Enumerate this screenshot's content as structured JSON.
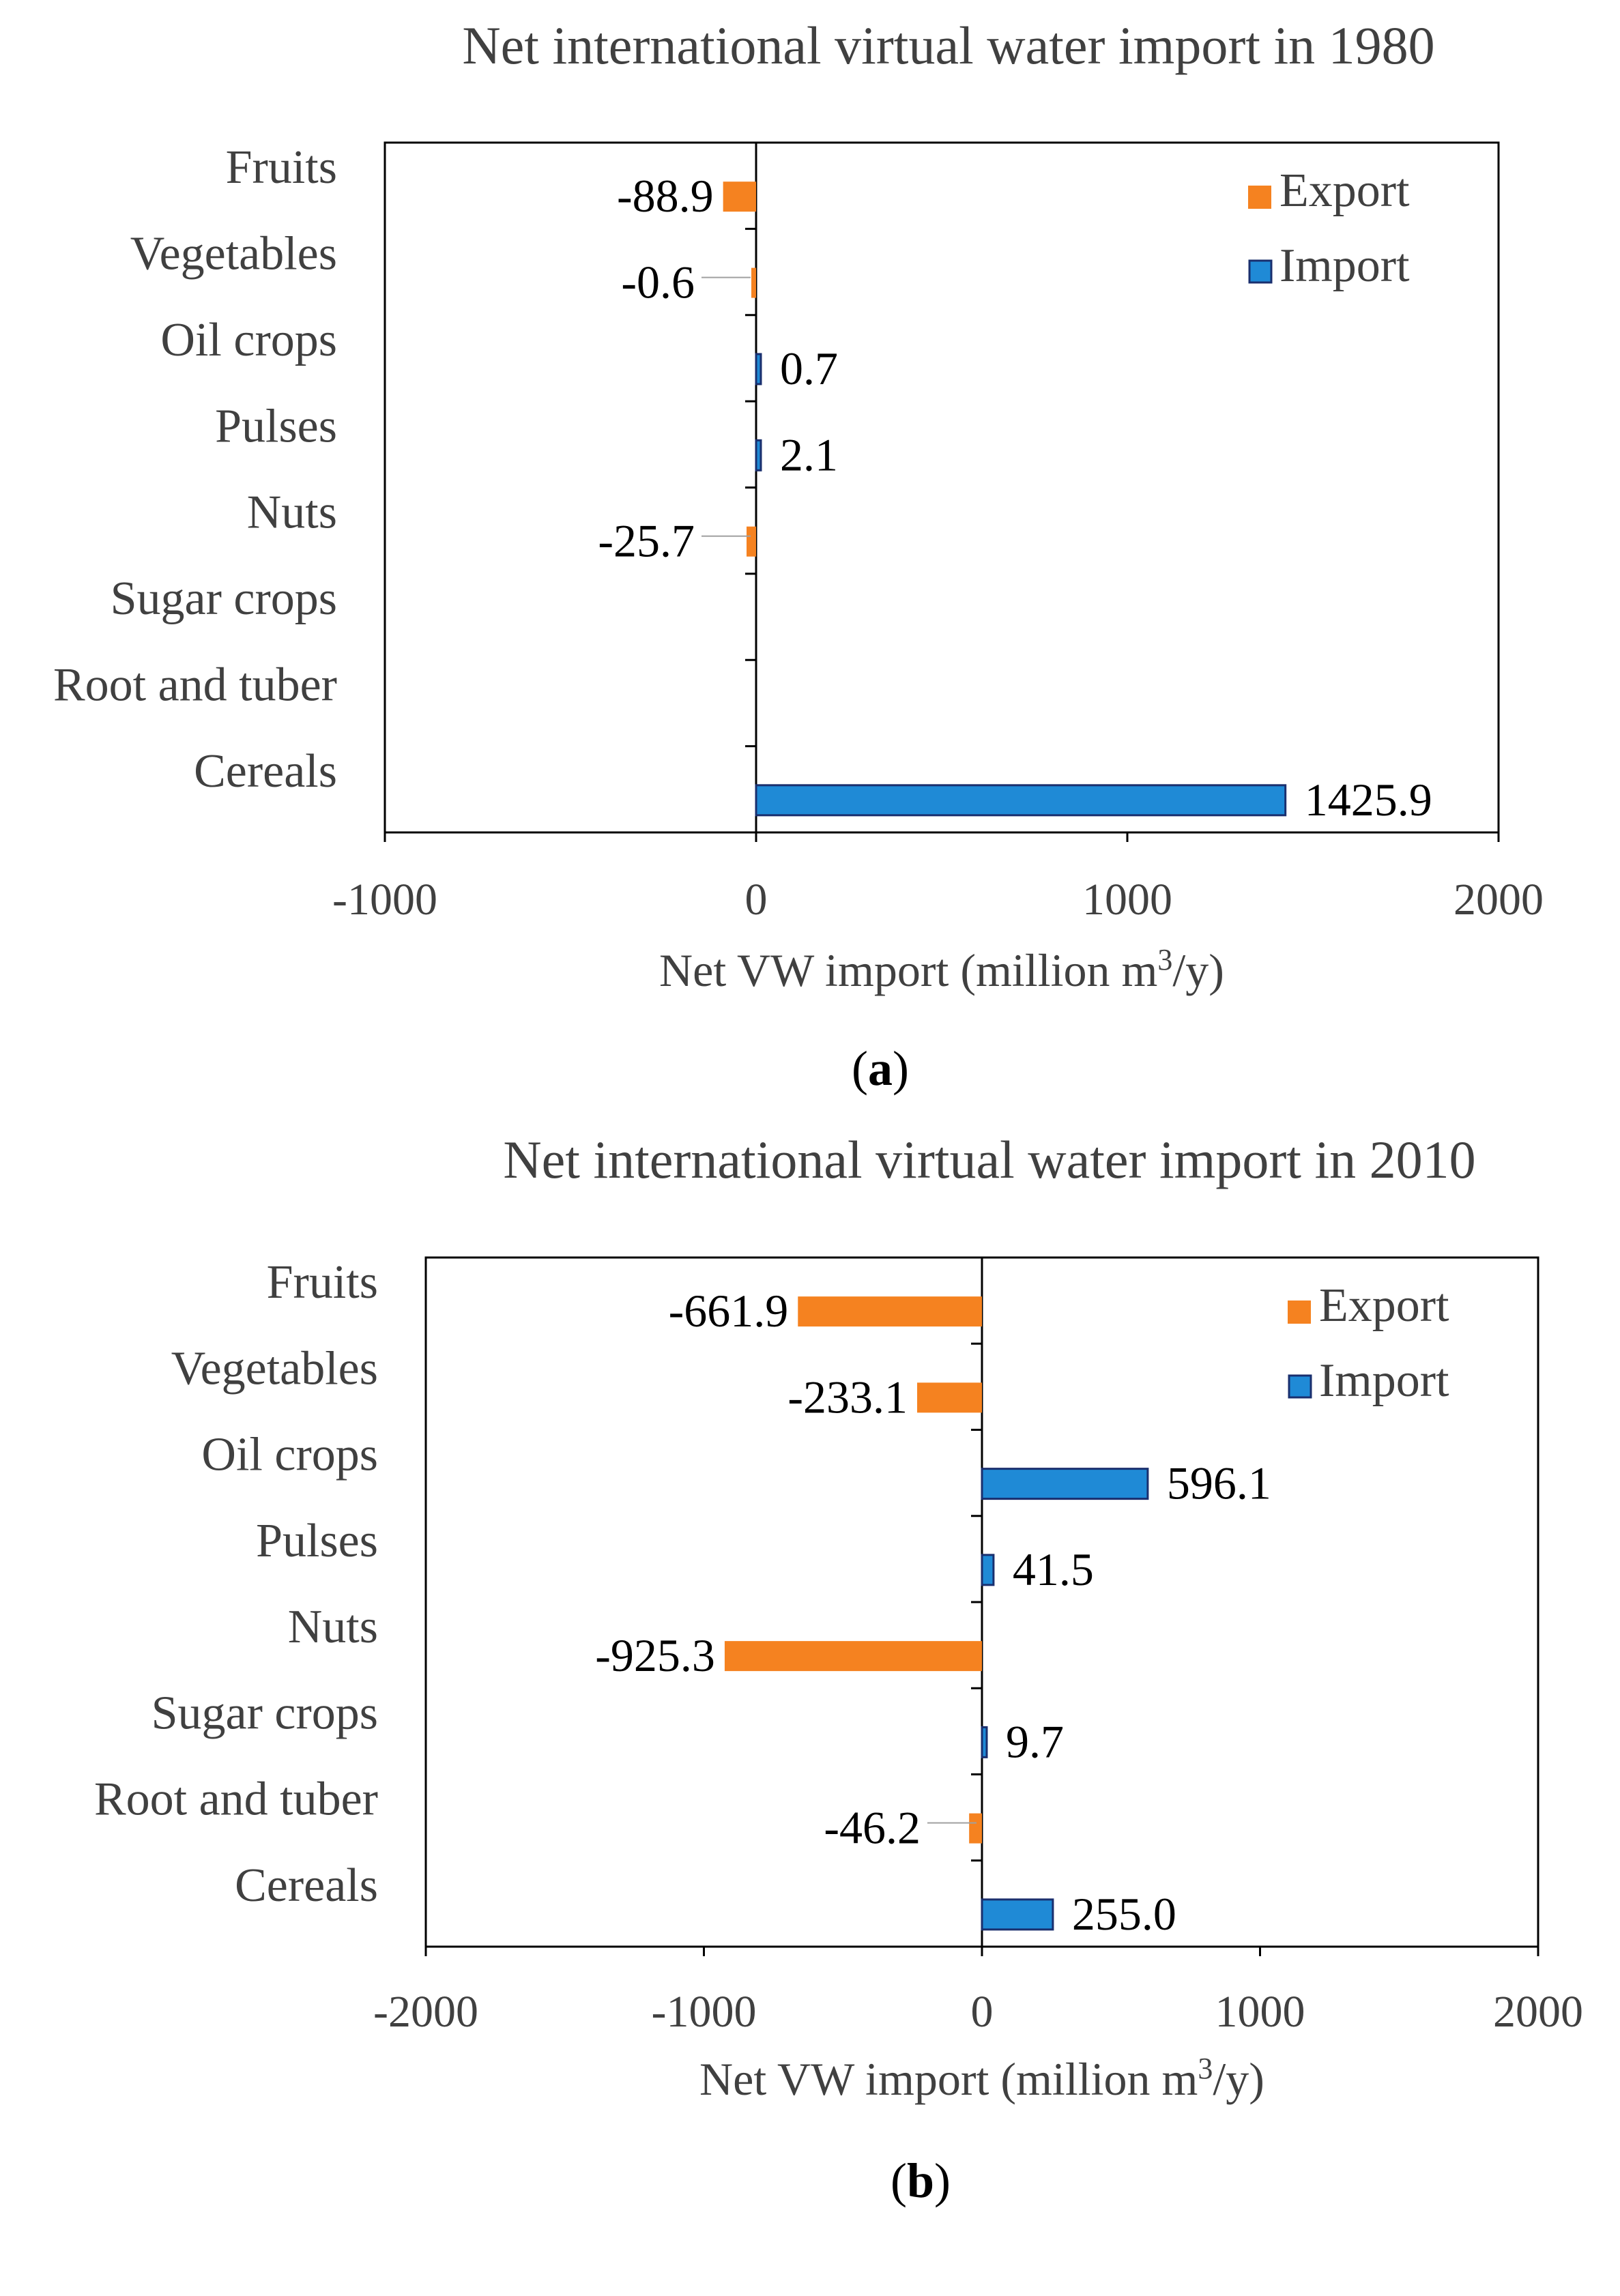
{
  "chart_data": [
    {
      "type": "bar",
      "orientation": "horizontal",
      "panel_label": "a",
      "title": "Net international  virtual  water  import  in  1980",
      "xlabel": "Net VW import  (million  m³/y)",
      "ylabel": "",
      "categories": [
        "Fruits",
        "Vegetables",
        "Oil crops",
        "Pulses",
        "Nuts",
        "Sugar crops",
        "Root and tuber",
        "Cereals"
      ],
      "values": [
        -88.9,
        -0.6,
        0.7,
        2.1,
        -25.7,
        null,
        null,
        1425.9
      ],
      "value_labels": [
        "-88.9",
        "-0.6",
        "0.7",
        "2.1",
        "-25.7",
        "",
        "",
        "1425.9"
      ],
      "xlim": [
        -1000,
        2000
      ],
      "xticks": [
        -1000,
        0,
        1000,
        2000
      ],
      "xtick_labels": [
        "-1000",
        "0",
        "1000",
        "2000"
      ],
      "legend": {
        "position": "top-right",
        "entries": [
          "Export",
          "Import"
        ]
      },
      "colors": {
        "export": "#f58220",
        "import": "#1f8ad6",
        "import_edge": "#1a2f6e"
      }
    },
    {
      "type": "bar",
      "orientation": "horizontal",
      "panel_label": "b",
      "title": "Net international  virtual  water  import  in  2010",
      "xlabel": "Net VW import  (million  m³/y)",
      "ylabel": "",
      "categories": [
        "Fruits",
        "Vegetables",
        "Oil crops",
        "Pulses",
        "Nuts",
        "Sugar crops",
        "Root and tuber",
        "Cereals"
      ],
      "values": [
        -661.9,
        -233.1,
        596.1,
        41.5,
        -925.3,
        9.7,
        -46.2,
        255.0
      ],
      "value_labels": [
        "-661.9",
        "-233.1",
        "596.1",
        "41.5",
        "-925.3",
        "9.7",
        "-46.2",
        "255.0"
      ],
      "xlim": [
        -2000,
        2000
      ],
      "xticks": [
        -2000,
        -1000,
        0,
        1000,
        2000
      ],
      "xtick_labels": [
        "-2000",
        "-1000",
        "0",
        "1000",
        "2000"
      ],
      "legend": {
        "position": "top-right",
        "entries": [
          "Export",
          "Import"
        ]
      },
      "colors": {
        "export": "#f58220",
        "import": "#1f8ad6",
        "import_edge": "#1a2f6e"
      }
    }
  ]
}
